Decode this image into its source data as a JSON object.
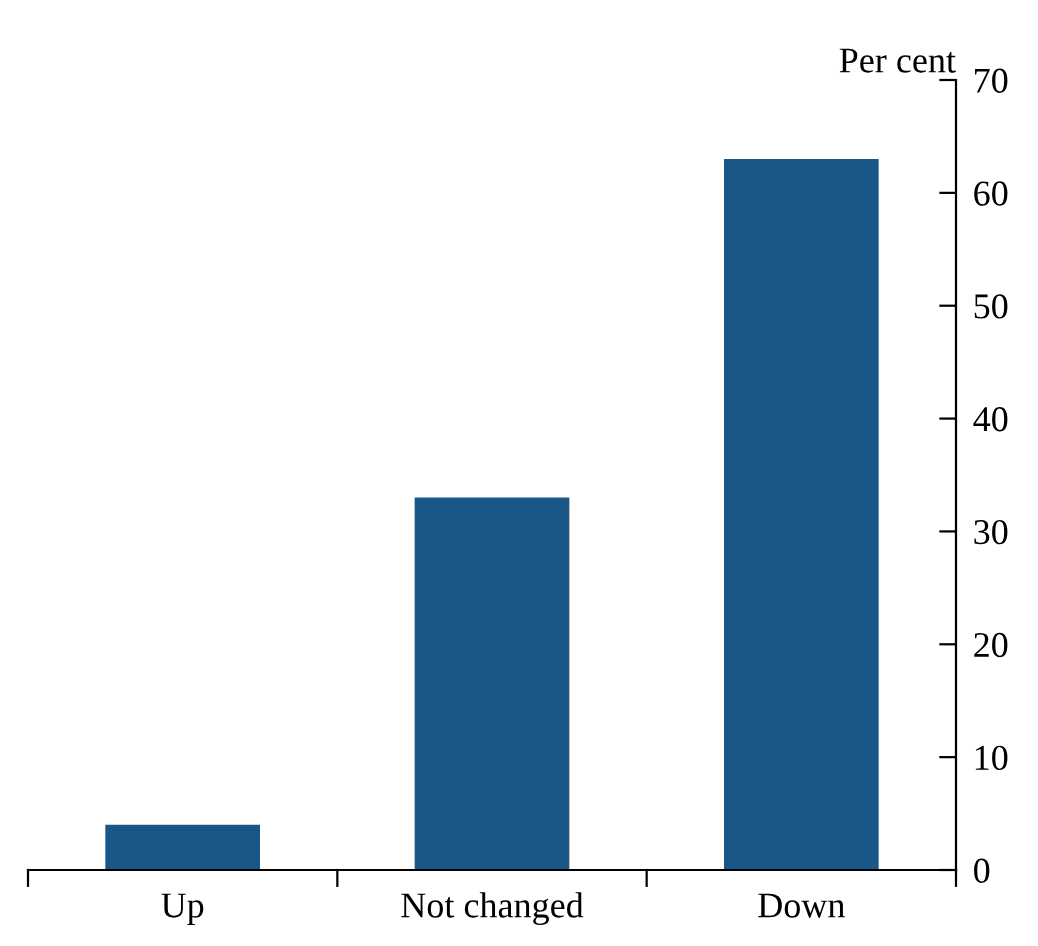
{
  "chart_data": {
    "type": "bar",
    "ylabel": "Per cent",
    "categories": [
      "Up",
      "Not changed",
      "Down"
    ],
    "values": [
      4,
      33,
      63
    ],
    "color": "#1a5686",
    "ylim": [
      0,
      70
    ],
    "yticks": [
      0,
      10,
      20,
      30,
      40,
      50,
      60,
      70
    ],
    "grid": false
  }
}
